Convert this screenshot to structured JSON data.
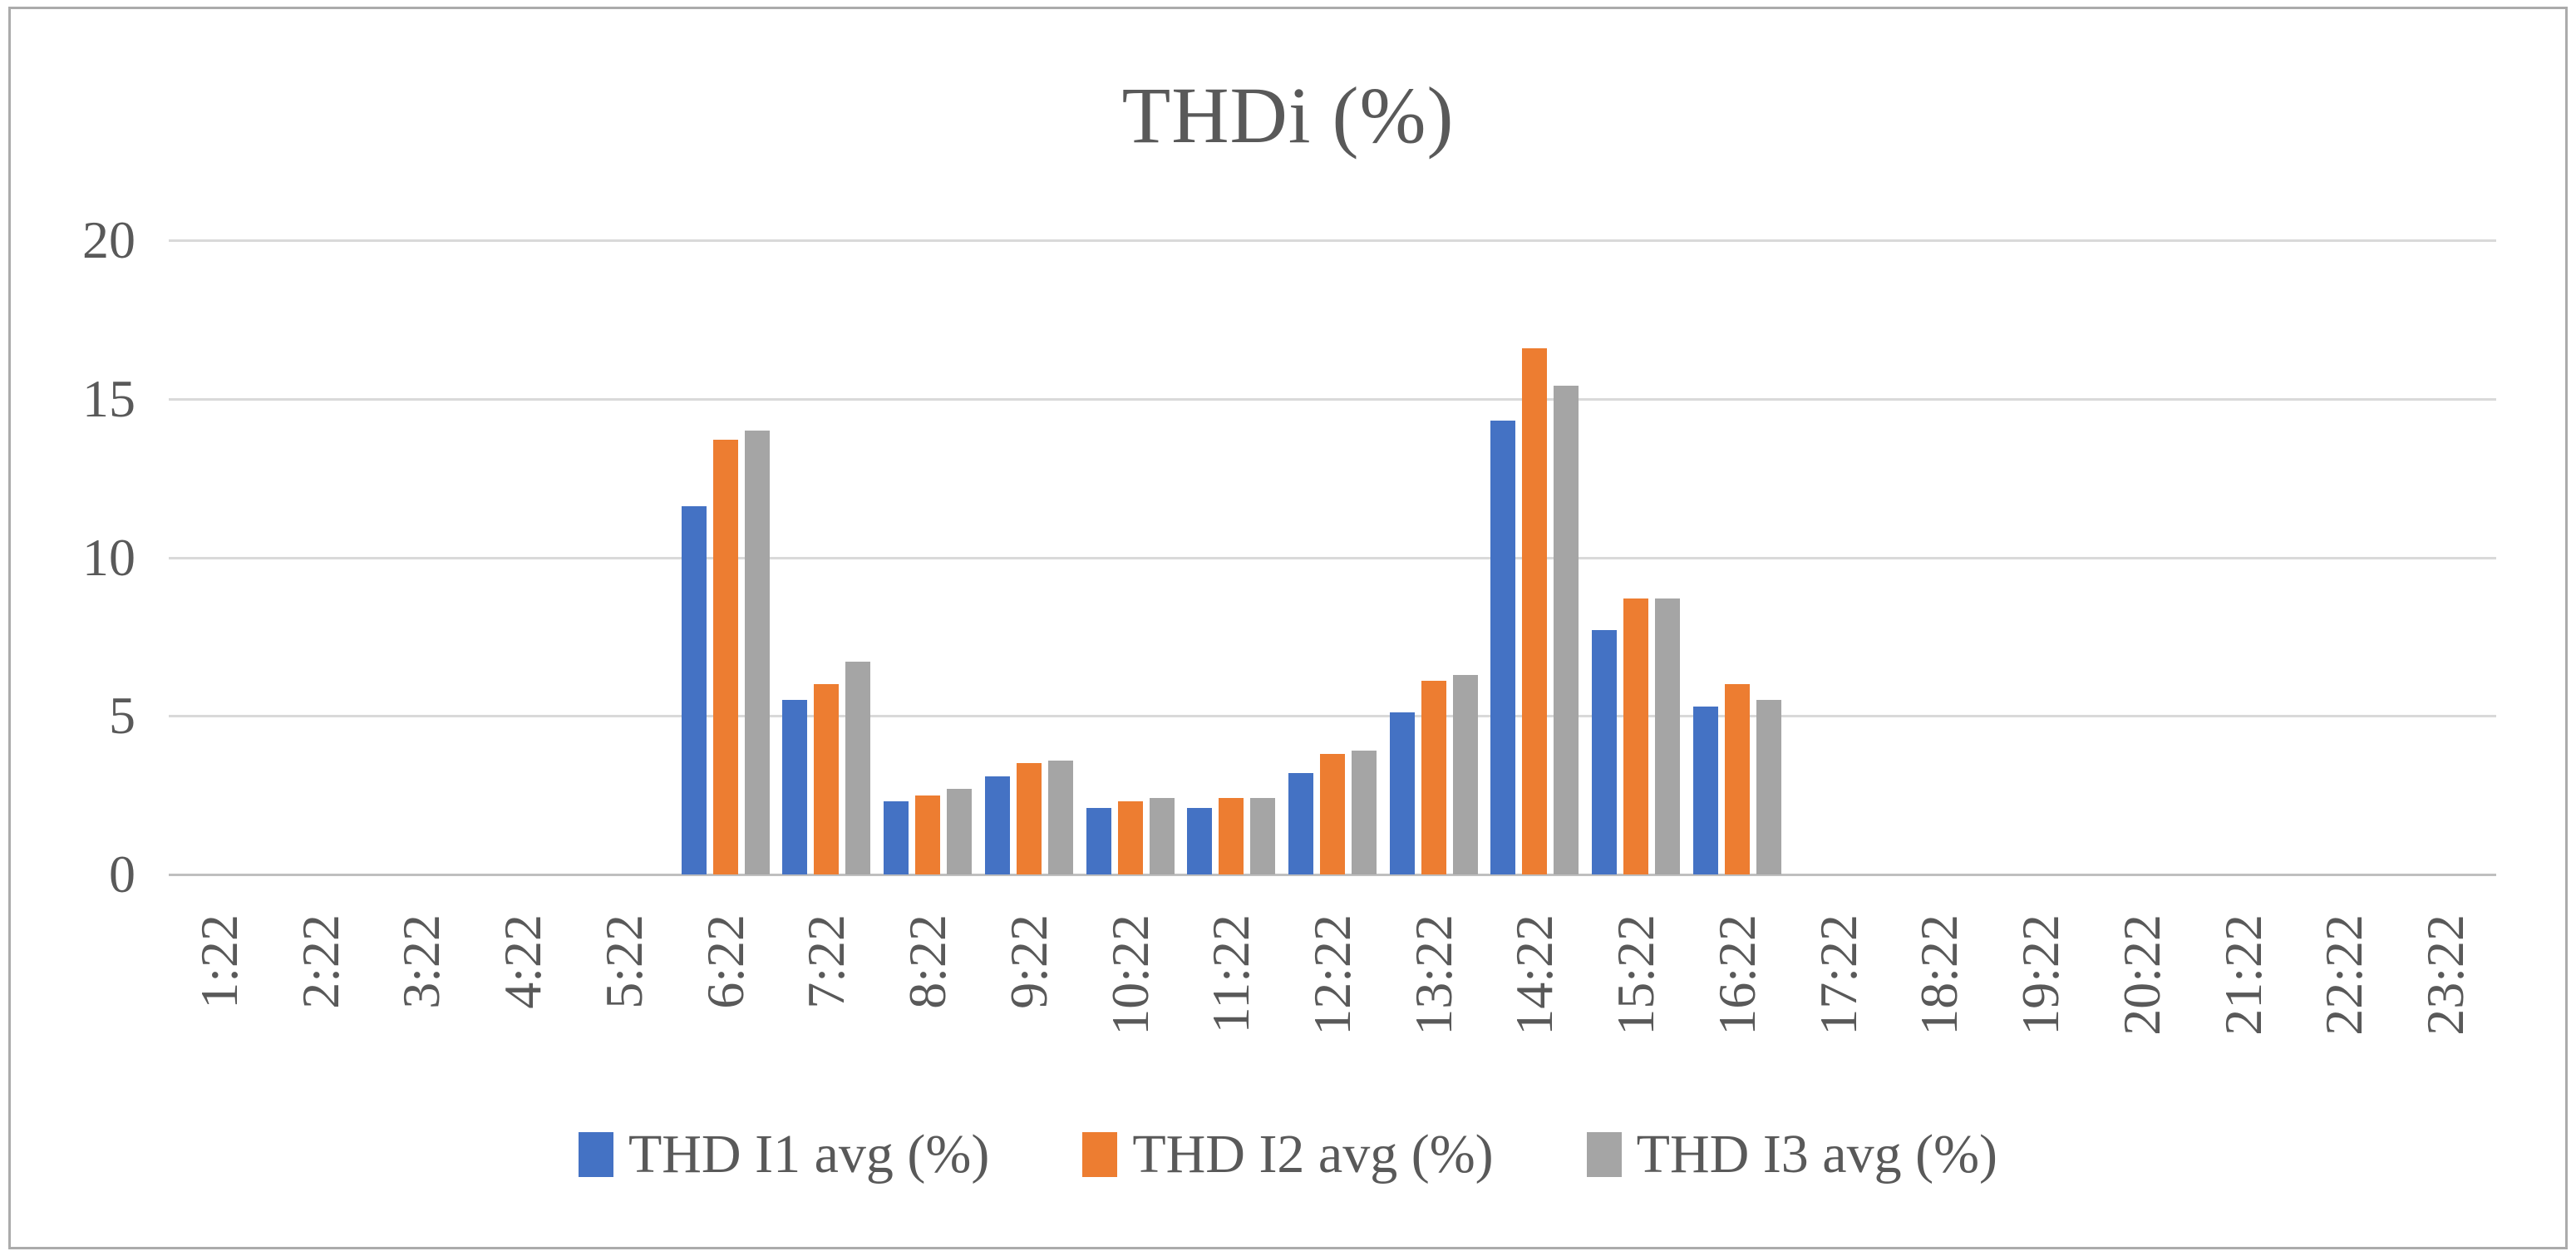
{
  "chart_data": {
    "type": "bar",
    "title": "THDi (%)",
    "categories": [
      "1:22",
      "2:22",
      "3:22",
      "4:22",
      "5:22",
      "6:22",
      "7:22",
      "8:22",
      "9:22",
      "10:22",
      "11:22",
      "12:22",
      "13:22",
      "14:22",
      "15:22",
      "16:22",
      "17:22",
      "18:22",
      "19:22",
      "20:22",
      "21:22",
      "22:22",
      "23:22"
    ],
    "series": [
      {
        "name": "THD I1 avg (%)",
        "color": "#4472C4",
        "values": [
          0,
          0,
          0,
          0,
          0,
          11.6,
          5.5,
          2.3,
          3.1,
          2.1,
          2.1,
          3.2,
          5.1,
          14.3,
          7.7,
          5.3,
          0,
          0,
          0,
          0,
          0,
          0,
          0
        ]
      },
      {
        "name": "THD I2 avg (%)",
        "color": "#ED7D31",
        "values": [
          0,
          0,
          0,
          0,
          0,
          13.7,
          6.0,
          2.5,
          3.5,
          2.3,
          2.4,
          3.8,
          6.1,
          16.6,
          8.7,
          6.0,
          0,
          0,
          0,
          0,
          0,
          0,
          0
        ]
      },
      {
        "name": "THD I3 avg (%)",
        "color": "#A5A5A5",
        "values": [
          0,
          0,
          0,
          0,
          0,
          14.0,
          6.7,
          2.7,
          3.6,
          2.4,
          2.4,
          3.9,
          6.3,
          15.4,
          8.7,
          5.5,
          0,
          0,
          0,
          0,
          0,
          0,
          0
        ]
      }
    ],
    "ylim": [
      0,
      20
    ],
    "yticks": [
      0,
      5,
      10,
      15,
      20
    ],
    "xlabel": "",
    "ylabel": "",
    "grid": "horizontal",
    "legend_position": "bottom",
    "x_label_rotation": -90,
    "colors": {
      "gridline": "#d9d9d9",
      "axis_line": "#bfbfbf",
      "text": "#595959"
    }
  }
}
